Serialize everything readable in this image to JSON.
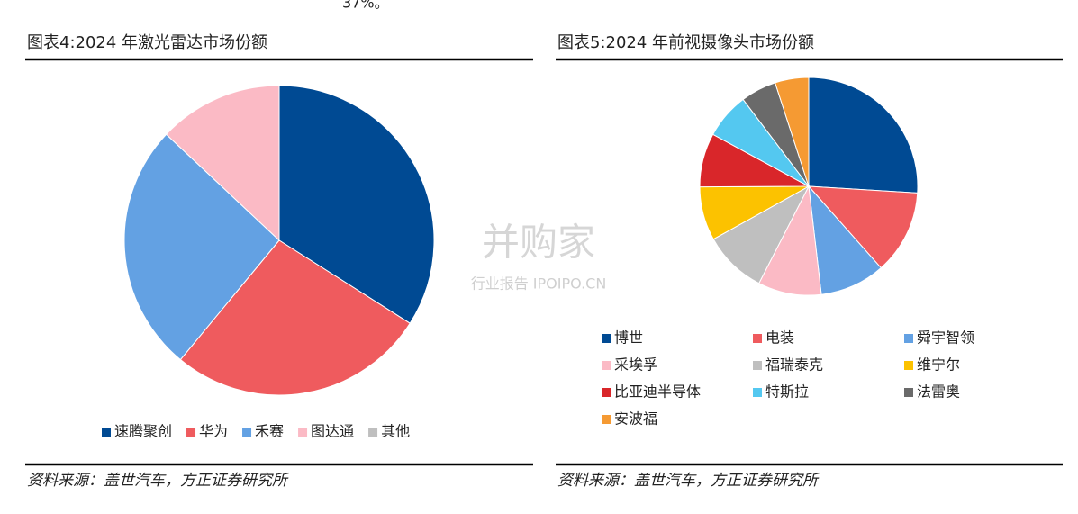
{
  "header_fragment": "37%。",
  "watermark": {
    "brand": "并购家",
    "sub": "行业报告 IPOIPO.CN"
  },
  "chart_data": [
    {
      "type": "pie",
      "title": "图表4:2024 年激光雷达市场份额",
      "source": "资料来源：盖世汽车，方正证券研究所",
      "categories": [
        "速腾聚创",
        "华为",
        "禾赛",
        "图达通",
        "其他"
      ],
      "values": [
        34,
        27,
        26,
        13,
        0
      ],
      "colors": [
        "#004a93",
        "#ef5b5e",
        "#63a1e3",
        "#fbbac5",
        "#bfbfbf"
      ]
    },
    {
      "type": "pie",
      "title": "图表5:2024 年前视摄像头市场份额",
      "source": "资料来源：盖世汽车，方正证券研究所",
      "categories": [
        "博世",
        "电装",
        "舜宇智领",
        "采埃孚",
        "福瑞泰克",
        "维宁尔",
        "比亚迪半导体",
        "特斯拉",
        "法雷奥",
        "安波福"
      ],
      "values": [
        26,
        12.5,
        9.7,
        9.4,
        9.4,
        8,
        8,
        6.8,
        5.3,
        5
      ],
      "colors": [
        "#004a93",
        "#ef5b5e",
        "#63a1e3",
        "#fbbac5",
        "#bfbfbf",
        "#fcc200",
        "#d9262a",
        "#54c8f0",
        "#6a6a6a",
        "#f59a33"
      ]
    }
  ]
}
